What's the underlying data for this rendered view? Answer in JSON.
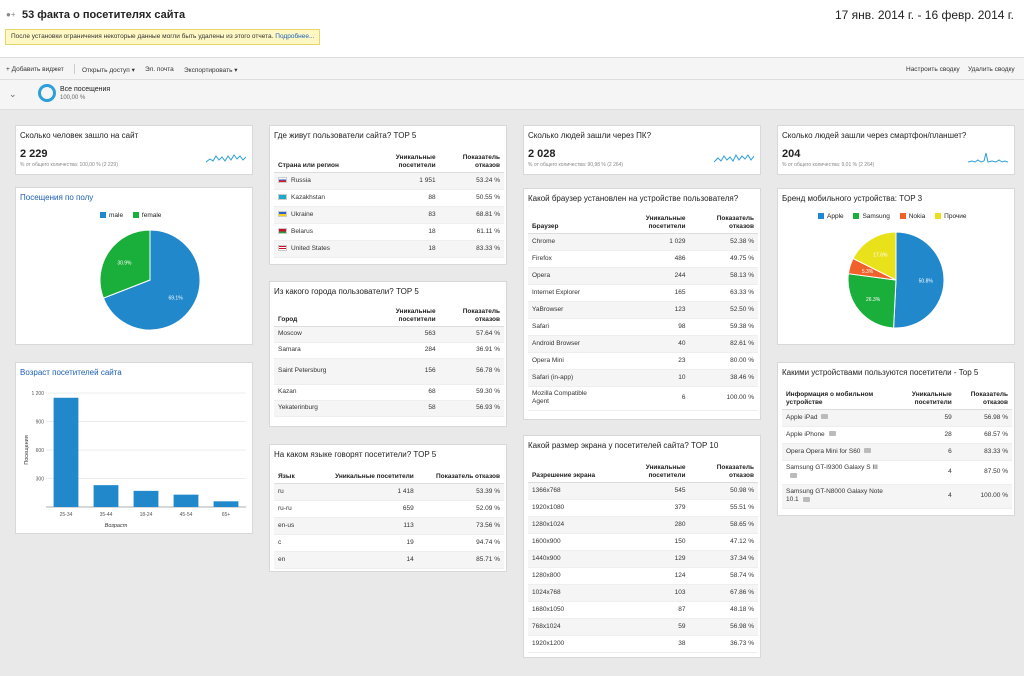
{
  "header": {
    "title": "53 факта о посетителях сайта",
    "date_range": "17 янв. 2014 г. - 16 февр. 2014 г.",
    "notice": "После установки ограничения некоторые данные могли быть удалены из этого отчета.",
    "notice_link": "Подробнее..."
  },
  "toolbar": {
    "add_widget": "+ Добавить виджет",
    "share": "Открыть доступ ▾",
    "email": "Эл. почта",
    "export": "Экспортировать ▾",
    "customize": "Настроить сводку",
    "delete": "Удалить сводку"
  },
  "segment": {
    "name": "Все посещения",
    "pct": "100,00 %"
  },
  "visitors": {
    "title": "Сколько человек зашло на сайт",
    "value": "2 229",
    "note": "% от общего количества: 100,00 % (2 229)"
  },
  "pc": {
    "title": "Сколько людей зашли через ПК?",
    "value": "2 028",
    "note": "% от общего количества: 90,98 % (2 264)"
  },
  "mobile": {
    "title": "Сколько людей зашли через смартфон/планшет?",
    "value": "204",
    "note": "% от общего количества: 9,01 % (2 264)"
  },
  "gender": {
    "title": "Посещения по полу",
    "legend": [
      "male",
      "female"
    ],
    "colors": [
      "#2288cc",
      "#1aae3a"
    ],
    "labels": [
      "69.1%",
      "30.9%"
    ],
    "chart_data": {
      "type": "pie",
      "categories": [
        "male",
        "female"
      ],
      "values": [
        69.1,
        30.9
      ]
    }
  },
  "age": {
    "title": "Возраст посетителей сайта",
    "ylabel": "Посещения",
    "xlabel": "Возраст",
    "yticks": [
      "1 200",
      "900",
      "600",
      "300"
    ],
    "categories": [
      "25-34",
      "35-44",
      "18-24",
      "45-54",
      "65+"
    ],
    "chart_data": {
      "type": "bar",
      "categories": [
        "25-34",
        "35-44",
        "18-24",
        "45-54",
        "65+"
      ],
      "values": [
        1150,
        230,
        170,
        130,
        60
      ],
      "ylim": [
        0,
        1200
      ]
    }
  },
  "countries": {
    "title": "Где живут пользователи сайта? TOP 5",
    "headers": [
      "Страна или регион",
      "Уникальные посетители",
      "Показатель отказов"
    ],
    "rows": [
      [
        "Russia",
        "1 951",
        "53.24 %"
      ],
      [
        "Kazakhstan",
        "88",
        "50.55 %"
      ],
      [
        "Ukraine",
        "83",
        "68.81 %"
      ],
      [
        "Belarus",
        "18",
        "61.11 %"
      ],
      [
        "United States",
        "18",
        "83.33 %"
      ]
    ]
  },
  "cities": {
    "title": "Из какого города пользователи? TOP 5",
    "headers": [
      "Город",
      "Уникальные посетители",
      "Показатель отказов"
    ],
    "rows": [
      [
        "Moscow",
        "563",
        "57.64 %"
      ],
      [
        "Samara",
        "284",
        "36.91 %"
      ],
      [
        "Saint Petersburg",
        "156",
        "56.78 %"
      ],
      [
        "Kazan",
        "68",
        "59.30 %"
      ],
      [
        "Yekaterinburg",
        "58",
        "56.93 %"
      ]
    ]
  },
  "languages": {
    "title": "На каком языке говорят посетители? TOP 5",
    "headers": [
      "Язык",
      "Уникальные посетители",
      "Показатель отказов"
    ],
    "rows": [
      [
        "ru",
        "1 418",
        "53.39 %"
      ],
      [
        "ru-ru",
        "659",
        "52.09 %"
      ],
      [
        "en-us",
        "113",
        "73.56 %"
      ],
      [
        "c",
        "19",
        "94.74 %"
      ],
      [
        "en",
        "14",
        "85.71 %"
      ]
    ]
  },
  "browsers": {
    "title": "Какой браузер установлен на устройстве пользователя?",
    "headers": [
      "Браузер",
      "Уникальные посетители",
      "Показатель отказов"
    ],
    "rows": [
      [
        "Chrome",
        "1 029",
        "52.38 %"
      ],
      [
        "Firefox",
        "486",
        "49.75 %"
      ],
      [
        "Opera",
        "244",
        "58.13 %"
      ],
      [
        "Internet Explorer",
        "165",
        "63.33 %"
      ],
      [
        "YaBrowser",
        "123",
        "52.50 %"
      ],
      [
        "Safari",
        "98",
        "59.38 %"
      ],
      [
        "Android Browser",
        "40",
        "82.61 %"
      ],
      [
        "Opera Mini",
        "23",
        "80.00 %"
      ],
      [
        "Safari (in-app)",
        "10",
        "38.46 %"
      ],
      [
        "Mozilla Compatible Agent",
        "6",
        "100.00 %"
      ]
    ]
  },
  "screens": {
    "title": "Какой размер экрана у посетителей сайта? TOP 10",
    "headers": [
      "Разрешение экрана",
      "Уникальные посетители",
      "Показатель отказов"
    ],
    "rows": [
      [
        "1366x768",
        "545",
        "50.98 %"
      ],
      [
        "1920x1080",
        "379",
        "55.51 %"
      ],
      [
        "1280x1024",
        "280",
        "58.65 %"
      ],
      [
        "1600x900",
        "150",
        "47.12 %"
      ],
      [
        "1440x900",
        "129",
        "37.34 %"
      ],
      [
        "1280x800",
        "124",
        "58.74 %"
      ],
      [
        "1024x768",
        "103",
        "67.86 %"
      ],
      [
        "1680x1050",
        "87",
        "48.18 %"
      ],
      [
        "768x1024",
        "59",
        "56.98 %"
      ],
      [
        "1920x1200",
        "38",
        "36.73 %"
      ]
    ]
  },
  "brands": {
    "title": "Бренд мобильного устройства: TOP 3",
    "legend": [
      "Apple",
      "Samsung",
      "Nokia",
      "Прочие"
    ],
    "colors": [
      "#2288cc",
      "#1aae3a",
      "#f0622a",
      "#e9e21a"
    ],
    "labels": [
      "50.8%",
      "26.3%",
      "5.3%",
      "17.6%"
    ],
    "chart_data": {
      "type": "pie",
      "categories": [
        "Apple",
        "Samsung",
        "Nokia",
        "Прочие"
      ],
      "values": [
        50.8,
        26.3,
        5.3,
        17.6
      ]
    }
  },
  "devices": {
    "title": "Какими устройствами пользуются посетители - Top 5",
    "headers": [
      "Информация о мобильном устройстве",
      "Уникальные посетители",
      "Показатель отказов"
    ],
    "rows": [
      [
        "Apple iPad",
        "59",
        "56.98 %"
      ],
      [
        "Apple iPhone",
        "28",
        "68.57 %"
      ],
      [
        "Opera Opera Mini for S60",
        "6",
        "83.33 %"
      ],
      [
        "Samsung GT-I9300 Galaxy S III",
        "4",
        "87.50 %"
      ],
      [
        "Samsung GT-N8000 Galaxy Note 10.1",
        "4",
        "100.00 %"
      ]
    ]
  }
}
